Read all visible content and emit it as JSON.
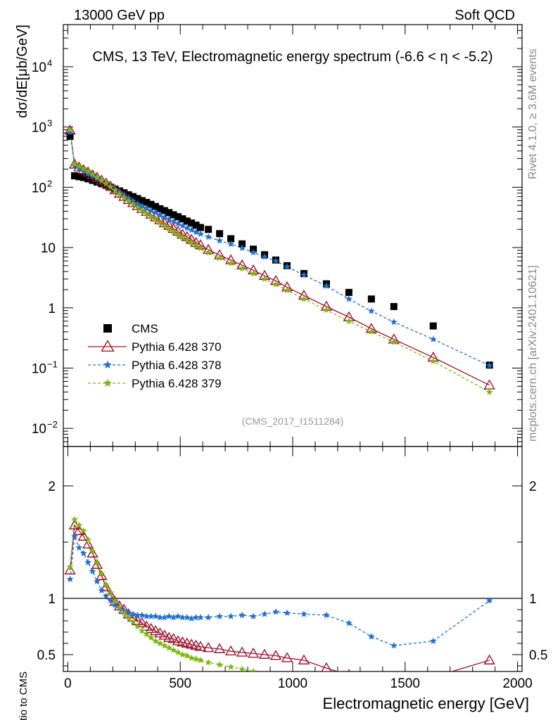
{
  "header": {
    "beam": "13000 GeV pp",
    "process": "Soft QCD",
    "side_rivet": "Rivet 4.1.0, ≥ 3.6M events",
    "side_mcplots": "mcplots.cern.ch [arXiv:2401.10621]"
  },
  "chart_data": [
    {
      "panel": "main",
      "type": "scatter",
      "title": "CMS, 13 TeV, Electromagnetic energy spectrum (-6.6 < η < -5.2)",
      "ylabel": "dσ/dE[μb/GeV]",
      "yscale": "log",
      "ylim": [
        0.005,
        50000
      ],
      "xlim": [
        -20,
        2020
      ],
      "analysis_label": "(CMS_2017_I1511284)",
      "ytick_labels": [
        {
          "value": 0.01,
          "base": "10",
          "exp": "−2"
        },
        {
          "value": 0.1,
          "base": "10",
          "exp": "−1"
        },
        {
          "value": 1,
          "base": "1",
          "exp": ""
        },
        {
          "value": 10,
          "base": "10",
          "exp": ""
        },
        {
          "value": 100,
          "base": "10",
          "exp": "2"
        },
        {
          "value": 1000,
          "base": "10",
          "exp": "3"
        },
        {
          "value": 10000,
          "base": "10",
          "exp": "4"
        }
      ],
      "legend": [
        "CMS",
        "Pythia 6.428 370",
        "Pythia 6.428 378",
        "Pythia 6.428 379"
      ],
      "series": [
        {
          "name": "CMS",
          "color": "#000000",
          "marker": "square",
          "x": [
            10,
            30,
            50,
            70,
            90,
            110,
            130,
            150,
            170,
            190,
            210,
            230,
            250,
            270,
            290,
            310,
            330,
            350,
            370,
            390,
            410,
            430,
            450,
            470,
            490,
            510,
            530,
            550,
            570,
            590,
            625,
            675,
            725,
            775,
            825,
            875,
            925,
            975,
            1050,
            1150,
            1250,
            1350,
            1450,
            1625,
            1875
          ],
          "y": [
            700,
            155,
            150,
            145,
            138,
            130,
            122,
            115,
            108,
            100,
            93,
            87,
            81,
            75,
            70,
            65,
            60,
            56,
            52,
            48,
            44,
            41,
            38,
            35,
            32.5,
            30,
            27.5,
            25.5,
            23.5,
            21.5,
            20,
            17,
            14,
            11.5,
            9.4,
            7.6,
            6.2,
            5,
            3.7,
            2.5,
            1.8,
            1.4,
            1.05,
            0.5,
            0.112
          ]
        },
        {
          "name": "Pythia 6.428 370",
          "color": "#a0152f",
          "marker": "triangle",
          "line": "solid",
          "x": [
            10,
            30,
            50,
            70,
            90,
            110,
            130,
            150,
            170,
            190,
            210,
            230,
            250,
            270,
            290,
            310,
            330,
            350,
            370,
            390,
            410,
            430,
            450,
            470,
            490,
            510,
            530,
            550,
            570,
            590,
            625,
            675,
            725,
            775,
            825,
            875,
            925,
            975,
            1050,
            1150,
            1250,
            1350,
            1450,
            1625,
            1875
          ],
          "y": [
            880,
            240,
            215,
            195,
            178,
            160,
            145,
            130,
            116,
            103,
            90,
            79,
            70,
            62,
            55,
            49,
            44,
            39.5,
            35.5,
            32,
            28.5,
            25.5,
            23,
            20.5,
            18.5,
            16.5,
            15,
            13.5,
            12,
            11,
            9.2,
            7.5,
            6.2,
            5.1,
            4.2,
            3.4,
            2.8,
            2.2,
            1.6,
            1.05,
            0.7,
            0.45,
            0.3,
            0.15,
            0.052
          ]
        },
        {
          "name": "Pythia 6.428 378",
          "color": "#1f6fd0",
          "marker": "star",
          "line": "dashed",
          "x": [
            10,
            30,
            50,
            70,
            90,
            110,
            130,
            150,
            170,
            190,
            210,
            230,
            250,
            270,
            290,
            310,
            330,
            350,
            370,
            390,
            410,
            430,
            450,
            470,
            490,
            510,
            530,
            550,
            570,
            590,
            625,
            675,
            725,
            775,
            825,
            875,
            925,
            975,
            1050,
            1150,
            1250,
            1350,
            1450,
            1625,
            1875
          ],
          "y": [
            820,
            225,
            205,
            185,
            170,
            155,
            140,
            127,
            115,
            103,
            92,
            82,
            73,
            65,
            59,
            53,
            49,
            45,
            41,
            38,
            35,
            32,
            29.5,
            27,
            25,
            23,
            21,
            19.5,
            18,
            16.8,
            15,
            13,
            11.4,
            9.8,
            8.3,
            7,
            6,
            4.8,
            3.5,
            2.3,
            1.4,
            0.88,
            0.58,
            0.3,
            0.11
          ]
        },
        {
          "name": "Pythia 6.428 379",
          "color": "#7ab80e",
          "marker": "star",
          "line": "dashed",
          "x": [
            10,
            30,
            50,
            70,
            90,
            110,
            130,
            150,
            170,
            190,
            210,
            230,
            250,
            270,
            290,
            310,
            330,
            350,
            370,
            390,
            410,
            430,
            450,
            470,
            490,
            510,
            530,
            550,
            570,
            590,
            625,
            675,
            725,
            775,
            825,
            875,
            925,
            975,
            1050,
            1150,
            1250,
            1350,
            1450,
            1625,
            1875
          ],
          "y": [
            900,
            245,
            225,
            205,
            185,
            165,
            147,
            130,
            115,
            101,
            88,
            77,
            67,
            59,
            52,
            46,
            41,
            36.5,
            32.5,
            29,
            26,
            23,
            20.5,
            18.5,
            16.5,
            14.8,
            13.3,
            12,
            10.8,
            9.7,
            8.2,
            6.7,
            5.5,
            4.5,
            3.7,
            3,
            2.45,
            1.95,
            1.4,
            0.92,
            0.6,
            0.4,
            0.27,
            0.13,
            0.04
          ]
        }
      ]
    },
    {
      "panel": "ratio",
      "type": "line",
      "ylabel": "Ratio to CMS",
      "xlabel": "Electromagnetic energy [GeV]",
      "ylim": [
        0.35,
        2.35
      ],
      "xlim": [
        -20,
        2020
      ],
      "xtick_labels": [
        "0",
        "500",
        "1000",
        "1500",
        "2000"
      ],
      "xticks": [
        0,
        500,
        1000,
        1500,
        2000
      ],
      "ytick_labels": [
        "0.5",
        "1",
        "2"
      ],
      "yticks": [
        0.5,
        1,
        2
      ],
      "series": [
        {
          "name": "Pythia 6.428 370",
          "color": "#a0152f",
          "marker": "triangle",
          "line": "solid",
          "x": [
            10,
            30,
            50,
            70,
            90,
            110,
            130,
            150,
            170,
            190,
            210,
            230,
            250,
            270,
            290,
            310,
            330,
            350,
            370,
            390,
            410,
            430,
            450,
            470,
            490,
            510,
            530,
            550,
            570,
            590,
            625,
            675,
            725,
            775,
            825,
            875,
            925,
            975,
            1050,
            1150,
            1250,
            1350,
            1450,
            1625,
            1875
          ],
          "y": [
            1.25,
            1.65,
            1.6,
            1.55,
            1.48,
            1.4,
            1.3,
            1.2,
            1.1,
            1.03,
            0.97,
            0.93,
            0.9,
            0.86,
            0.83,
            0.8,
            0.78,
            0.75,
            0.73,
            0.71,
            0.69,
            0.67,
            0.65,
            0.64,
            0.62,
            0.61,
            0.6,
            0.59,
            0.58,
            0.57,
            0.56,
            0.55,
            0.53,
            0.52,
            0.51,
            0.5,
            0.49,
            0.47,
            0.45,
            0.38,
            0.32,
            0.28,
            0.25,
            0.3,
            0.45
          ]
        },
        {
          "name": "Pythia 6.428 378",
          "color": "#1f6fd0",
          "marker": "star",
          "line": "dashed",
          "x": [
            10,
            30,
            50,
            70,
            90,
            110,
            130,
            150,
            170,
            190,
            210,
            230,
            250,
            270,
            290,
            310,
            330,
            350,
            370,
            390,
            410,
            430,
            450,
            470,
            490,
            510,
            530,
            550,
            570,
            590,
            625,
            675,
            725,
            775,
            825,
            875,
            925,
            975,
            1050,
            1150,
            1250,
            1350,
            1450,
            1625,
            1875
          ],
          "y": [
            1.17,
            1.55,
            1.45,
            1.4,
            1.32,
            1.24,
            1.15,
            1.07,
            1.02,
            0.98,
            0.94,
            0.91,
            0.89,
            0.87,
            0.86,
            0.85,
            0.85,
            0.84,
            0.84,
            0.84,
            0.83,
            0.83,
            0.84,
            0.83,
            0.84,
            0.83,
            0.83,
            0.82,
            0.83,
            0.83,
            0.83,
            0.84,
            0.84,
            0.85,
            0.84,
            0.86,
            0.88,
            0.87,
            0.86,
            0.85,
            0.78,
            0.66,
            0.58,
            0.62,
            0.98
          ]
        },
        {
          "name": "Pythia 6.428 379",
          "color": "#7ab80e",
          "marker": "star",
          "line": "dashed",
          "x": [
            10,
            30,
            50,
            70,
            90,
            110,
            130,
            150,
            170,
            190,
            210,
            230,
            250,
            270,
            290,
            310,
            330,
            350,
            370,
            390,
            410,
            430,
            450,
            470,
            490,
            510,
            530,
            550,
            570,
            590,
            625,
            675,
            725,
            775,
            825,
            875,
            925,
            975
          ],
          "y": [
            1.28,
            1.7,
            1.65,
            1.6,
            1.52,
            1.42,
            1.32,
            1.22,
            1.12,
            1.05,
            0.98,
            0.92,
            0.87,
            0.83,
            0.79,
            0.75,
            0.71,
            0.68,
            0.65,
            0.62,
            0.6,
            0.58,
            0.56,
            0.54,
            0.52,
            0.5,
            0.49,
            0.47,
            0.46,
            0.45,
            0.43,
            0.41,
            0.39,
            0.37,
            0.35,
            0.33,
            0.31,
            0.29
          ]
        }
      ]
    }
  ]
}
